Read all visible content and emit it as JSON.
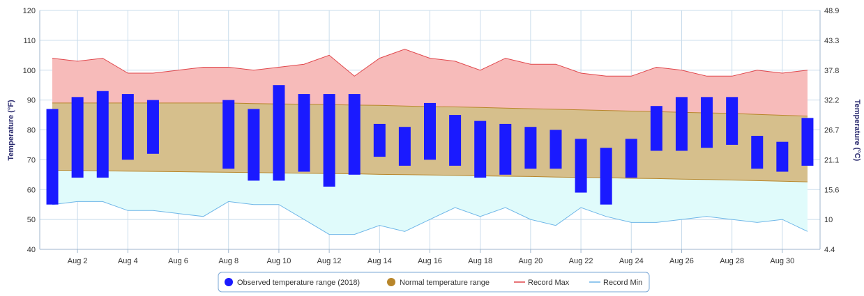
{
  "chart_data": {
    "type": "bar",
    "title": "",
    "ylabel_left": "Temperature (°F)",
    "ylabel_right": "Temperature (°C)",
    "ylim": [
      40,
      120
    ],
    "y_ticks": [
      40,
      50,
      60,
      70,
      80,
      90,
      100,
      110,
      120
    ],
    "y_right_ticks": [
      "4.4",
      "10",
      "15.6",
      "21.1",
      "26.7",
      "32.2",
      "37.8",
      "43.3",
      "48.9"
    ],
    "x_tick_labels": [
      "Aug 2",
      "Aug 4",
      "Aug 6",
      "Aug 8",
      "Aug 10",
      "Aug 12",
      "Aug 14",
      "Aug 16",
      "Aug 18",
      "Aug 20",
      "Aug 22",
      "Aug 24",
      "Aug 26",
      "Aug 28",
      "Aug 30"
    ],
    "x_tick_days": [
      2,
      4,
      6,
      8,
      10,
      12,
      14,
      16,
      18,
      20,
      22,
      24,
      26,
      28,
      30
    ],
    "days": [
      1,
      2,
      3,
      4,
      5,
      6,
      7,
      8,
      9,
      10,
      11,
      12,
      13,
      14,
      15,
      16,
      17,
      18,
      19,
      20,
      21,
      22,
      23,
      24,
      25,
      26,
      27,
      28,
      29,
      30,
      31
    ],
    "observed": [
      {
        "day": 1,
        "low": 55,
        "high": 87
      },
      {
        "day": 2,
        "low": 64,
        "high": 91
      },
      {
        "day": 3,
        "low": 64,
        "high": 93
      },
      {
        "day": 4,
        "low": 70,
        "high": 92
      },
      {
        "day": 5,
        "low": 72,
        "high": 90
      },
      {
        "day": 8,
        "low": 67,
        "high": 90
      },
      {
        "day": 9,
        "low": 63,
        "high": 87
      },
      {
        "day": 10,
        "low": 63,
        "high": 95
      },
      {
        "day": 11,
        "low": 66,
        "high": 92
      },
      {
        "day": 12,
        "low": 61,
        "high": 92
      },
      {
        "day": 13,
        "low": 65,
        "high": 92
      },
      {
        "day": 14,
        "low": 71,
        "high": 82
      },
      {
        "day": 15,
        "low": 68,
        "high": 81
      },
      {
        "day": 16,
        "low": 70,
        "high": 89
      },
      {
        "day": 17,
        "low": 68,
        "high": 85
      },
      {
        "day": 18,
        "low": 64,
        "high": 83
      },
      {
        "day": 19,
        "low": 65,
        "high": 82
      },
      {
        "day": 20,
        "low": 67,
        "high": 81
      },
      {
        "day": 21,
        "low": 67,
        "high": 80
      },
      {
        "day": 22,
        "low": 59,
        "high": 77
      },
      {
        "day": 23,
        "low": 55,
        "high": 74
      },
      {
        "day": 24,
        "low": 64,
        "high": 77
      },
      {
        "day": 25,
        "low": 73,
        "high": 88
      },
      {
        "day": 26,
        "low": 73,
        "high": 91
      },
      {
        "day": 27,
        "low": 74,
        "high": 91
      },
      {
        "day": 28,
        "low": 75,
        "high": 91
      },
      {
        "day": 29,
        "low": 67,
        "high": 78
      },
      {
        "day": 30,
        "low": 66,
        "high": 76
      },
      {
        "day": 31,
        "low": 68,
        "high": 84
      }
    ],
    "normal_high": [
      89,
      89,
      89,
      89,
      89,
      89,
      89,
      89,
      88.8,
      88.7,
      88.6,
      88.5,
      88.3,
      88.2,
      88,
      87.8,
      87.7,
      87.5,
      87.3,
      87.1,
      86.9,
      86.7,
      86.5,
      86.3,
      86.1,
      85.9,
      85.7,
      85.5,
      85.2,
      84.9,
      84.6
    ],
    "normal_low": [
      66.5,
      66.4,
      66.3,
      66.2,
      66.1,
      66,
      65.9,
      65.8,
      65.7,
      65.6,
      65.5,
      65.4,
      65.3,
      65.1,
      65,
      64.9,
      64.8,
      64.6,
      64.5,
      64.4,
      64.2,
      64.1,
      64,
      63.8,
      63.7,
      63.5,
      63.4,
      63.2,
      63,
      62.8,
      62.6
    ],
    "record_max": [
      104,
      103,
      104,
      99,
      99,
      100,
      101,
      101,
      100,
      101,
      102,
      105,
      98,
      104,
      107,
      104,
      103,
      100,
      104,
      102,
      102,
      99,
      98,
      98,
      101,
      100,
      98,
      98,
      100,
      99,
      100
    ],
    "record_min": [
      55,
      56,
      56,
      53,
      53,
      52,
      51,
      56,
      55,
      55,
      50,
      45,
      45,
      48,
      46,
      50,
      54,
      51,
      54,
      50,
      48,
      54,
      51,
      49,
      49,
      50,
      51,
      50,
      49,
      50,
      46
    ],
    "legend": [
      {
        "label": "Observed temperature range (2018)",
        "symbol": "dot",
        "color": "#1a1aff"
      },
      {
        "label": "Normal temperature range",
        "symbol": "dot",
        "color": "#b8862b"
      },
      {
        "label": "Record Max",
        "symbol": "line",
        "color": "#e0464b"
      },
      {
        "label": "Record Min",
        "symbol": "line",
        "color": "#6fb6e8"
      }
    ],
    "legend_position": "bottom-center",
    "grid": true,
    "colors": {
      "observed": "#1a1aff",
      "normal_fill": "#d6bf8c",
      "normal_line": "#b8862b",
      "record_max_fill": "#f7bbba",
      "record_max_line": "#e0464b",
      "record_min_fill": "#e0fbfb",
      "record_min_line": "#6fb6e8",
      "grid": "#c9dceb",
      "axis": "#9fb6cc"
    }
  }
}
